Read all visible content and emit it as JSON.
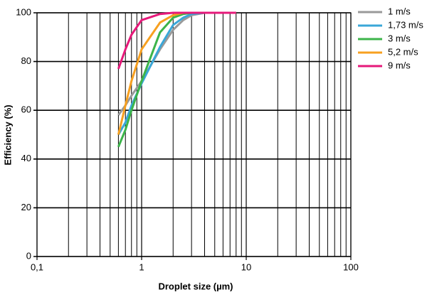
{
  "chart_data": {
    "type": "line",
    "xlabel": "Droplet size (µm)",
    "ylabel": "Efficiency (%)",
    "xscale": "log",
    "xlim": [
      0.1,
      100
    ],
    "ylim": [
      0,
      100
    ],
    "xticks": [
      {
        "value": 0.1,
        "label": "0,1"
      },
      1,
      10,
      100
    ],
    "x_minor_gridlines": [
      0.2,
      0.3,
      0.4,
      0.5,
      0.6,
      0.7,
      0.8,
      0.9,
      2,
      3,
      4,
      5,
      6,
      7,
      8,
      9,
      20,
      30,
      40,
      50,
      60,
      70,
      80,
      90
    ],
    "yticks": [
      0,
      20,
      40,
      60,
      80,
      100
    ],
    "grid": true,
    "legend": "right",
    "series": [
      {
        "name": "1 m/s",
        "color": "#9a9a9a",
        "x": [
          0.6,
          0.7,
          0.8,
          1,
          1.5,
          2,
          2.5,
          3,
          4,
          8
        ],
        "values": [
          58,
          62,
          66,
          72,
          85,
          93,
          97,
          99,
          100,
          100
        ]
      },
      {
        "name": "1,73 m/s",
        "color": "#3aa7d8",
        "x": [
          0.6,
          0.7,
          0.8,
          1,
          1.5,
          2,
          2.5,
          3,
          4,
          8
        ],
        "values": [
          50,
          55,
          62,
          71,
          86,
          95,
          98,
          99.5,
          100,
          100
        ]
      },
      {
        "name": "3 m/s",
        "color": "#3cb44a",
        "x": [
          0.6,
          0.7,
          0.8,
          1,
          1.5,
          2,
          2.5,
          3,
          8
        ],
        "values": [
          45,
          52,
          60,
          72,
          92,
          98,
          99.5,
          100,
          100
        ]
      },
      {
        "name": "5,2 m/s",
        "color": "#f7a020",
        "x": [
          0.6,
          0.7,
          0.8,
          1,
          1.5,
          2,
          2.5,
          8
        ],
        "values": [
          50,
          62,
          72,
          85,
          96,
          99,
          100,
          100
        ]
      },
      {
        "name": "9 m/s",
        "color": "#e6197a",
        "x": [
          0.6,
          0.7,
          0.8,
          1,
          1.5,
          2,
          8
        ],
        "values": [
          77,
          85,
          91,
          97,
          99.5,
          100,
          100
        ]
      }
    ]
  }
}
